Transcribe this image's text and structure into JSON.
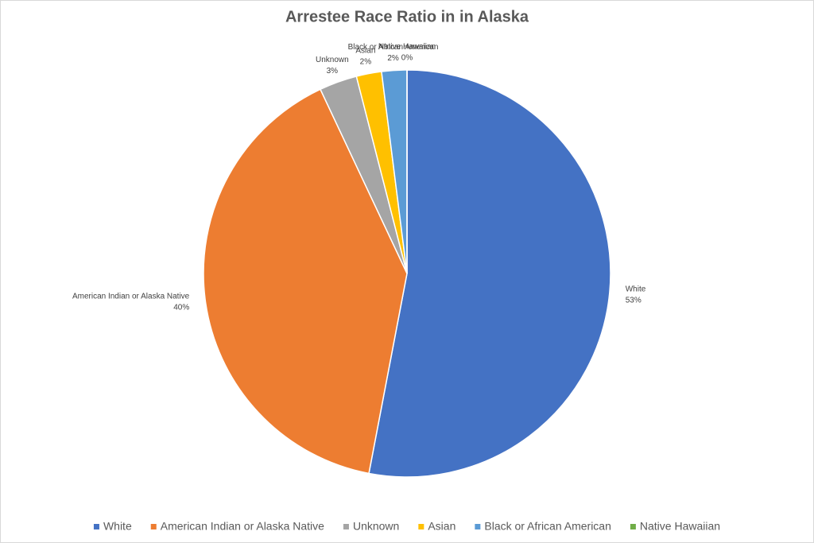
{
  "chart_data": {
    "type": "pie",
    "title": "Arrestee Race Ratio in in Alaska",
    "categories": [
      "White",
      "American Indian or Alaska Native",
      "Unknown",
      "Asian",
      "Black or African American",
      "Native Hawaiian"
    ],
    "values": [
      53,
      40,
      3,
      2,
      2,
      0
    ],
    "value_labels": [
      "53%",
      "40%",
      "3%",
      "2%",
      "2%",
      "0%"
    ],
    "colors": [
      "#4472c4",
      "#ed7d31",
      "#a5a5a5",
      "#ffc000",
      "#5b9bd5",
      "#70ad47"
    ],
    "legend": "bottom"
  }
}
